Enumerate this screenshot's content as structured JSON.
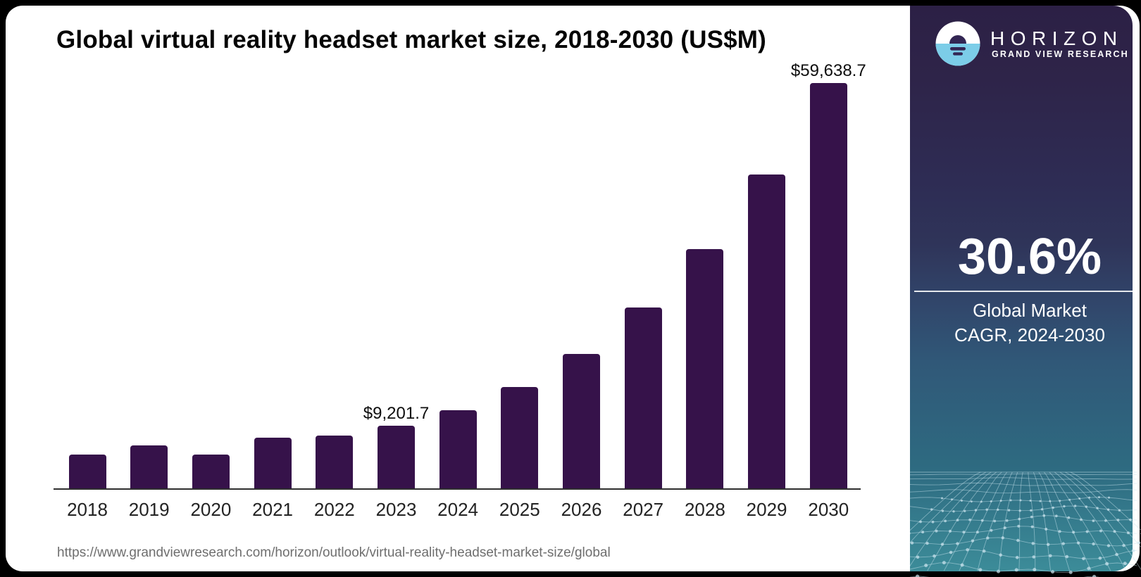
{
  "title": "Global virtual reality headset market size, 2018-2030 (US$M)",
  "source_url": "https://www.grandviewresearch.com/horizon/outlook/virtual-reality-headset-market-size/global",
  "chart_data": {
    "type": "bar",
    "title": "Global virtual reality headset market size, 2018-2030 (US$M)",
    "unit": "US$M",
    "categories": [
      "2018",
      "2019",
      "2020",
      "2021",
      "2022",
      "2023",
      "2024",
      "2025",
      "2026",
      "2027",
      "2028",
      "2029",
      "2030"
    ],
    "values": [
      4970,
      6360,
      5020,
      7420,
      7760,
      9201.7,
      11460,
      14900,
      19740,
      26630,
      35160,
      46130,
      59638.7
    ],
    "labeled_values": [
      {
        "category": "2023",
        "label": "$9,201.7"
      },
      {
        "category": "2030",
        "label": "$59,638.7"
      }
    ],
    "ylim": [
      0,
      62000
    ],
    "grid": false,
    "legend": false,
    "bar_color": "#36124A",
    "axis_color": "#2f2f2f"
  },
  "sidebar": {
    "brand": "HORIZON",
    "sub_brand": "GRAND VIEW RESEARCH",
    "stat_value": "30.6%",
    "stat_label_line1": "Global Market",
    "stat_label_line2": "CAGR, 2024-2030",
    "colors": {
      "gradient": [
        "#2C2045",
        "#2E2449",
        "#2E2C54",
        "#2F3459",
        "#31456A",
        "#305878",
        "#2E6B81",
        "#3C8C99"
      ],
      "logo_blue": "#7CCDE8",
      "logo_dark": "#332653",
      "mesh_line": "rgba(200,228,238,0.5)"
    }
  }
}
